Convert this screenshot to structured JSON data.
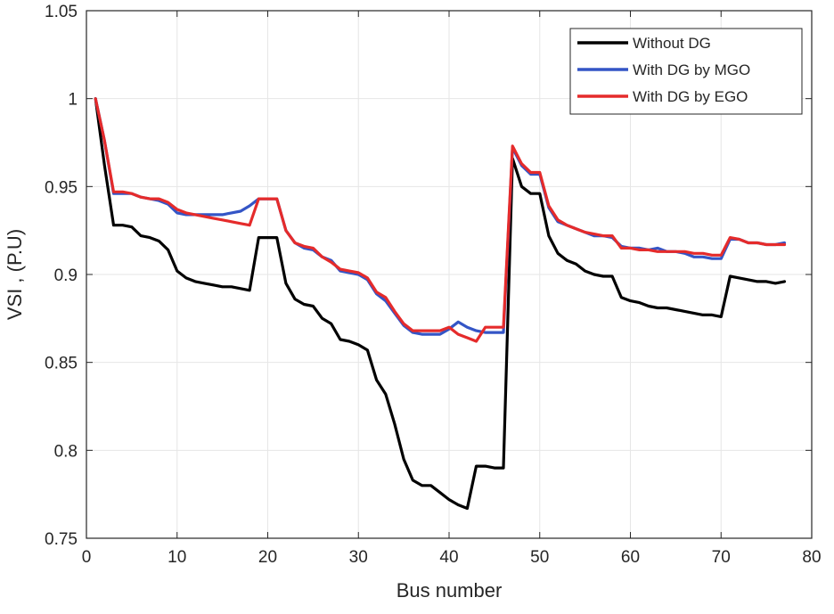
{
  "chart_data": {
    "type": "line",
    "title": "",
    "xlabel": "Bus number",
    "ylabel": "VSI , (P.U)",
    "xlim": [
      0,
      80
    ],
    "ylim": [
      0.75,
      1.05
    ],
    "xticks": [
      0,
      10,
      20,
      30,
      40,
      50,
      60,
      70,
      80
    ],
    "yticks": [
      0.75,
      0.8,
      0.85,
      0.9,
      0.95,
      1,
      1.05
    ],
    "xtick_labels": [
      "0",
      "10",
      "20",
      "30",
      "40",
      "50",
      "60",
      "70",
      "80"
    ],
    "ytick_labels": [
      "0.75",
      "0.8",
      "0.85",
      "0.9",
      "0.95",
      "1",
      "1.05"
    ],
    "grid": true,
    "legend_position": "top-right",
    "x": [
      1,
      2,
      3,
      4,
      5,
      6,
      7,
      8,
      9,
      10,
      11,
      12,
      13,
      14,
      15,
      16,
      17,
      18,
      19,
      20,
      21,
      22,
      23,
      24,
      25,
      26,
      27,
      28,
      29,
      30,
      31,
      32,
      33,
      34,
      35,
      36,
      37,
      38,
      39,
      40,
      41,
      42,
      43,
      44,
      45,
      46,
      47,
      48,
      49,
      50,
      51,
      52,
      53,
      54,
      55,
      56,
      57,
      58,
      59,
      60,
      61,
      62,
      63,
      64,
      65,
      66,
      67,
      68,
      69,
      70,
      71,
      72,
      73,
      74,
      75,
      76,
      77
    ],
    "series": [
      {
        "name": "Without DG",
        "color": "#000000",
        "values": [
          1.0,
          0.962,
          0.928,
          0.928,
          0.927,
          0.922,
          0.921,
          0.919,
          0.914,
          0.902,
          0.898,
          0.896,
          0.895,
          0.894,
          0.893,
          0.893,
          0.892,
          0.891,
          0.921,
          0.921,
          0.921,
          0.895,
          0.886,
          0.883,
          0.882,
          0.875,
          0.872,
          0.863,
          0.862,
          0.86,
          0.857,
          0.84,
          0.832,
          0.815,
          0.795,
          0.783,
          0.78,
          0.78,
          0.776,
          0.772,
          0.769,
          0.767,
          0.791,
          0.791,
          0.79,
          0.79,
          0.966,
          0.95,
          0.946,
          0.946,
          0.922,
          0.912,
          0.908,
          0.906,
          0.902,
          0.9,
          0.899,
          0.899,
          0.887,
          0.885,
          0.884,
          0.882,
          0.881,
          0.881,
          0.88,
          0.879,
          0.878,
          0.877,
          0.877,
          0.876,
          0.899,
          0.898,
          0.897,
          0.896,
          0.896,
          0.895,
          0.896
        ]
      },
      {
        "name": "With DG by MGO",
        "color": "#3455c6",
        "values": [
          1.0,
          0.976,
          0.946,
          0.946,
          0.946,
          0.944,
          0.943,
          0.942,
          0.94,
          0.935,
          0.934,
          0.934,
          0.934,
          0.934,
          0.934,
          0.935,
          0.936,
          0.939,
          0.943,
          0.943,
          0.943,
          0.925,
          0.918,
          0.915,
          0.914,
          0.91,
          0.908,
          0.902,
          0.901,
          0.9,
          0.897,
          0.889,
          0.885,
          0.878,
          0.871,
          0.867,
          0.866,
          0.866,
          0.866,
          0.869,
          0.873,
          0.87,
          0.868,
          0.867,
          0.867,
          0.867,
          0.972,
          0.962,
          0.957,
          0.957,
          0.938,
          0.93,
          0.928,
          0.926,
          0.924,
          0.922,
          0.922,
          0.921,
          0.916,
          0.915,
          0.915,
          0.914,
          0.915,
          0.913,
          0.913,
          0.912,
          0.91,
          0.91,
          0.909,
          0.909,
          0.92,
          0.92,
          0.918,
          0.918,
          0.917,
          0.917,
          0.918
        ]
      },
      {
        "name": "With DG by EGO",
        "color": "#e52b2b",
        "values": [
          1.0,
          0.976,
          0.947,
          0.947,
          0.946,
          0.944,
          0.943,
          0.943,
          0.941,
          0.937,
          0.935,
          0.934,
          0.933,
          0.932,
          0.931,
          0.93,
          0.929,
          0.928,
          0.943,
          0.943,
          0.943,
          0.925,
          0.918,
          0.916,
          0.915,
          0.91,
          0.907,
          0.903,
          0.902,
          0.901,
          0.898,
          0.89,
          0.887,
          0.879,
          0.872,
          0.868,
          0.868,
          0.868,
          0.868,
          0.87,
          0.866,
          0.864,
          0.862,
          0.87,
          0.87,
          0.87,
          0.973,
          0.963,
          0.958,
          0.958,
          0.939,
          0.931,
          0.928,
          0.926,
          0.924,
          0.923,
          0.922,
          0.922,
          0.915,
          0.915,
          0.914,
          0.914,
          0.913,
          0.913,
          0.913,
          0.913,
          0.912,
          0.912,
          0.911,
          0.911,
          0.921,
          0.92,
          0.918,
          0.918,
          0.917,
          0.917,
          0.917
        ]
      }
    ]
  }
}
